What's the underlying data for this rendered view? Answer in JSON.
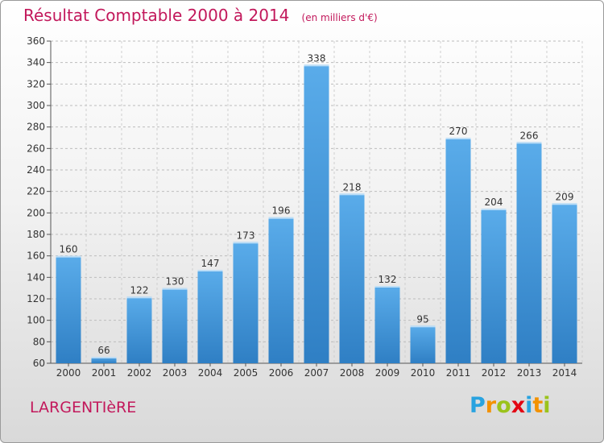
{
  "title": "Résultat Comptable 2000 à 2014",
  "subtitle": "(en milliers d'€)",
  "commune": "LARGENTIèRE",
  "logo": {
    "letters": [
      "P",
      "r",
      "o",
      "x",
      "i",
      "t",
      "i"
    ],
    "colors": [
      "#29a3e0",
      "#f39200",
      "#9bc31c",
      "#e30613",
      "#29a3e0",
      "#f39200",
      "#9bc31c"
    ]
  },
  "colors": {
    "bar": "#3d96d9",
    "bar_dark": "#2c7cc0",
    "title": "#c2185b"
  },
  "chart_data": {
    "type": "bar",
    "categories": [
      "2000",
      "2001",
      "2002",
      "2003",
      "2004",
      "2005",
      "2006",
      "2007",
      "2008",
      "2009",
      "2010",
      "2011",
      "2012",
      "2013",
      "2014"
    ],
    "values": [
      160,
      66,
      122,
      130,
      147,
      173,
      196,
      338,
      218,
      132,
      95,
      270,
      204,
      266,
      209
    ],
    "title": "Résultat Comptable 2000 à 2014",
    "ylim": [
      60,
      360
    ],
    "yticks": [
      60,
      80,
      100,
      120,
      140,
      160,
      180,
      200,
      220,
      240,
      260,
      280,
      300,
      320,
      340,
      360
    ],
    "grid": true
  }
}
